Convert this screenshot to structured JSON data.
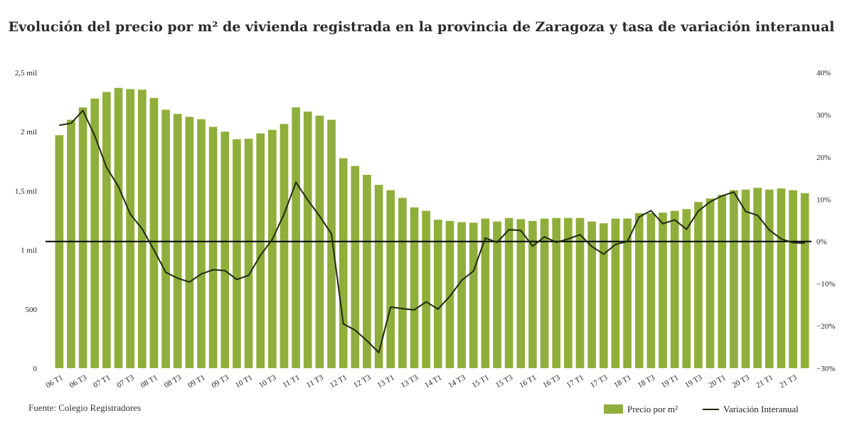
{
  "chart_data": {
    "type": "bar",
    "title": "Evolución del precio por m² de vivienda registrada en la provincia de Zaragoza y tasa de variación interanual",
    "source": "Fuente: Colegio Registradores",
    "categories": [
      "06 T1",
      "06 T2",
      "06 T3",
      "06 T4",
      "07 T1",
      "07 T2",
      "07 T3",
      "07 T4",
      "08 T1",
      "08 T2",
      "08 T3",
      "08 T4",
      "09 T1",
      "09 T2",
      "09 T3",
      "09 T4",
      "10 T1",
      "10 T2",
      "10 T3",
      "10 T4",
      "11 T1",
      "11 T2",
      "11 T3",
      "11 T4",
      "12 T1",
      "12 T2",
      "12 T3",
      "12 T4",
      "13 T1",
      "13 T2",
      "13 T3",
      "13 T4",
      "14 T1",
      "14 T2",
      "14 T3",
      "14 T4",
      "15 T1",
      "15 T2",
      "15 T3",
      "15 T4",
      "16 T1",
      "16 T2",
      "16 T3",
      "16 T4",
      "17 T1",
      "17 T2",
      "17 T3",
      "17 T4",
      "18 T1",
      "18 T2",
      "18 T3",
      "18 T4",
      "19 T1",
      "19 T2",
      "19 T3",
      "19 T4",
      "20 T1",
      "20 T2",
      "20 T3",
      "20 T4",
      "21 T1",
      "21 T2",
      "21 T3",
      "21 T4"
    ],
    "x_tick_labels": [
      "06 T1",
      "06 T3",
      "07 T1",
      "07 T3",
      "08 T1",
      "08 T3",
      "09 T1",
      "09 T3",
      "10 T1",
      "10 T3",
      "11 T1",
      "11 T3",
      "12 T1",
      "12 T3",
      "13 T1",
      "13 T3",
      "14 T1",
      "14 T3",
      "15 T1",
      "15 T3",
      "16 T1",
      "16 T3",
      "17 T1",
      "17 T3",
      "18 T1",
      "18 T3",
      "19 T1",
      "19 T3",
      "20 T1",
      "20 T3",
      "21 T1",
      "21 T3"
    ],
    "series": [
      {
        "name": "Precio por m²",
        "type": "bar",
        "axis": "left",
        "color": "#8fae3b",
        "values": [
          1970,
          2100,
          2205,
          2280,
          2335,
          2370,
          2360,
          2355,
          2285,
          2185,
          2150,
          2125,
          2105,
          2040,
          2000,
          1935,
          1940,
          1985,
          2015,
          2065,
          2205,
          2170,
          2135,
          2100,
          1775,
          1710,
          1635,
          1550,
          1505,
          1440,
          1360,
          1330,
          1255,
          1245,
          1235,
          1230,
          1265,
          1240,
          1270,
          1260,
          1245,
          1265,
          1270,
          1270,
          1270,
          1240,
          1225,
          1265,
          1265,
          1310,
          1310,
          1315,
          1330,
          1345,
          1405,
          1435,
          1465,
          1505,
          1510,
          1525,
          1510,
          1520,
          1505,
          1480
        ]
      },
      {
        "name": "Variación Interanual",
        "type": "line",
        "axis": "right",
        "color": "#1f2a0c",
        "values": [
          27.5,
          28,
          31,
          25,
          17.5,
          13,
          6.5,
          3,
          -2,
          -7.3,
          -8.7,
          -9.6,
          -7.7,
          -6.7,
          -6.9,
          -9,
          -8,
          -3.3,
          0.5,
          6.5,
          14,
          9.8,
          6,
          1.8,
          -19.5,
          -21,
          -23.5,
          -26.3,
          -15.5,
          -15.9,
          -16.2,
          -14.3,
          -16,
          -13,
          -9.2,
          -7,
          0.8,
          -0.2,
          2.8,
          2.6,
          -1.1,
          1.1,
          -0.2,
          0.6,
          1.6,
          -1.2,
          -3,
          -0.7,
          0,
          5.8,
          7.3,
          4.2,
          5.1,
          2.9,
          7.2,
          9.4,
          10.8,
          11.7,
          7.1,
          6.2,
          2.7,
          0.6,
          -0.3,
          -0.4
        ]
      }
    ],
    "y_left": {
      "ylim": [
        0,
        2500
      ],
      "ticks": [
        0,
        500,
        1000,
        1500,
        2000,
        2500
      ],
      "tick_labels": [
        "0",
        "500",
        "1 mil",
        "1,5 mil",
        "2 mil",
        "2,5 mil"
      ]
    },
    "y_right": {
      "ylim": [
        -30,
        40
      ],
      "ticks": [
        -30,
        -20,
        -10,
        0,
        10,
        20,
        30,
        40
      ],
      "tick_labels": [
        "−30%",
        "−20%",
        "−10%",
        "0%",
        "10%",
        "20%",
        "30%",
        "40%"
      ]
    },
    "reference_line": {
      "axis": "right",
      "value": 0
    },
    "grid": false,
    "legend": {
      "position": "bottom-right"
    }
  }
}
